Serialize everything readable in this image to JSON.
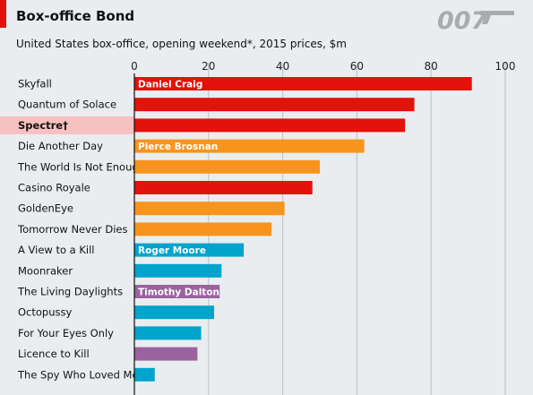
{
  "chart_data": {
    "type": "bar",
    "orientation": "horizontal",
    "title": "Box-office Bond",
    "subtitle": "United States box-office, opening weekend*, 2015 prices, $m",
    "logo_text": "007",
    "xlim": [
      0,
      100
    ],
    "xticks": [
      "0",
      "20",
      "40",
      "60",
      "80",
      "100"
    ],
    "grid": true,
    "categories": [
      "Skyfall",
      "Quantum of Solace",
      "Spectre†",
      "Die Another Day",
      "The World Is Not Enough",
      "Casino Royale",
      "GoldenEye",
      "Tomorrow Never Dies",
      "A View to a Kill",
      "Moonraker",
      "The Living Daylights",
      "Octopussy",
      "For Your Eyes Only",
      "Licence to Kill",
      "The Spy Who Loved Me"
    ],
    "values": [
      91,
      75.5,
      73,
      62,
      50,
      48,
      40.5,
      37,
      29.5,
      23.5,
      23,
      21.5,
      18,
      17,
      5.5
    ],
    "actor": [
      "Daniel Craig",
      "Daniel Craig",
      "Daniel Craig",
      "Pierce Brosnan",
      "Pierce Brosnan",
      "Daniel Craig",
      "Pierce Brosnan",
      "Pierce Brosnan",
      "Roger Moore",
      "Roger Moore",
      "Timothy Dalton",
      "Roger Moore",
      "Roger Moore",
      "Timothy Dalton",
      "Roger Moore"
    ],
    "actor_colors": {
      "Daniel Craig": "#e3120b",
      "Pierce Brosnan": "#f7941d",
      "Roger Moore": "#00a4cc",
      "Timothy Dalton": "#9b62a0"
    },
    "highlight_category": "Spectre†",
    "highlight_color": "#f8c1c1",
    "accent_color": "#e3120b"
  }
}
